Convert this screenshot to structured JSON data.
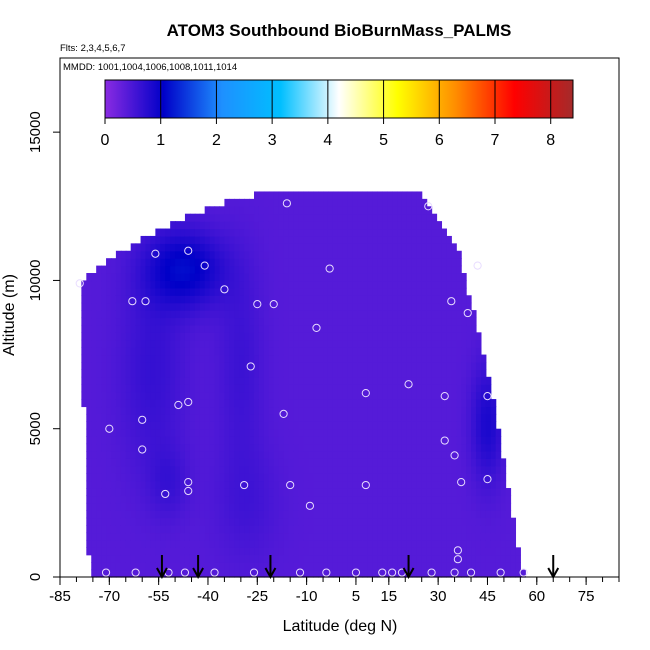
{
  "chart_data": {
    "type": "heatmap",
    "title": "ATOM3 Southbound BioBurnMass_PALMS",
    "flights_label": "Flts: 2,3,4,5,6,7",
    "dates_label": "MMDD: 1001,1004,1006,1008,1011,1014",
    "xlabel": "Latitude (deg N)",
    "ylabel": "Altitude (m)",
    "xlim": [
      -85,
      85
    ],
    "ylim": [
      0,
      17500
    ],
    "x_ticks": [
      -85,
      -70,
      -55,
      -40,
      -25,
      -10,
      5,
      15,
      30,
      45,
      60,
      75
    ],
    "x_tick_labels": [
      "-85",
      "-70",
      "-55",
      "-40",
      "-25",
      "-10",
      "5",
      "15",
      "30",
      "45",
      "60",
      "75"
    ],
    "x_minor_step": 5,
    "y_ticks": [
      0,
      5000,
      10000,
      15000
    ],
    "y_tick_labels": [
      "0",
      "5000",
      "10000",
      "15000"
    ],
    "colorbar": {
      "min": 0,
      "max": 8.4,
      "ticks": [
        0,
        1,
        2,
        3,
        4,
        5,
        6,
        7,
        8
      ],
      "tick_labels": [
        "0",
        "1",
        "2",
        "3",
        "4",
        "5",
        "6",
        "7",
        "8"
      ],
      "colors": [
        "#8a2be2",
        "#0000c8",
        "#1e90ff",
        "#00bfff",
        "#ffffff",
        "#ffff00",
        "#ff8c00",
        "#ff0000",
        "#a52a2a"
      ]
    },
    "region_outline": [
      [
        -76,
        0
      ],
      [
        -79,
        10000
      ],
      [
        -63,
        11200
      ],
      [
        -50,
        12000
      ],
      [
        -30,
        12800
      ],
      [
        -20,
        13000
      ],
      [
        -10,
        13000
      ],
      [
        25,
        13000
      ],
      [
        36,
        11000
      ],
      [
        45,
        7000
      ],
      [
        56,
        0
      ]
    ],
    "field_base_value": 0.4,
    "field_anomalies": [
      {
        "lat": -47,
        "alt": 10400,
        "sx": 12,
        "sy": 1300,
        "v": 0.7
      },
      {
        "lat": -57,
        "alt": 7000,
        "sx": 10,
        "sy": 3500,
        "v": 0.25
      },
      {
        "lat": -30,
        "alt": 7200,
        "sx": 7,
        "sy": 3500,
        "v": 0.2
      },
      {
        "lat": -52,
        "alt": 3200,
        "sx": 6,
        "sy": 1200,
        "v": 0.2
      },
      {
        "lat": 45,
        "alt": 5200,
        "sx": 5,
        "sy": 2000,
        "v": 0.45
      },
      {
        "lat": -28,
        "alt": 2500,
        "sx": 10,
        "sy": 2000,
        "v": 0.15
      }
    ],
    "observations": [
      [
        -79,
        9900
      ],
      [
        -56,
        10900
      ],
      [
        -46,
        11000
      ],
      [
        -41,
        10500
      ],
      [
        -63,
        9300
      ],
      [
        -59,
        9300
      ],
      [
        -35,
        9700
      ],
      [
        -25,
        9200
      ],
      [
        -20,
        9200
      ],
      [
        -16,
        12600
      ],
      [
        -3,
        10400
      ],
      [
        -7,
        8400
      ],
      [
        27,
        12500
      ],
      [
        34,
        9300
      ],
      [
        39,
        8900
      ],
      [
        42,
        10500
      ],
      [
        -27,
        7100
      ],
      [
        -49,
        5800
      ],
      [
        -46,
        5900
      ],
      [
        -60,
        5300
      ],
      [
        -70,
        5000
      ],
      [
        -60,
        4300
      ],
      [
        -17,
        5500
      ],
      [
        8,
        6200
      ],
      [
        21,
        6500
      ],
      [
        32,
        6100
      ],
      [
        32,
        4600
      ],
      [
        35,
        4100
      ],
      [
        45,
        6100
      ],
      [
        -46,
        3200
      ],
      [
        -53,
        2800
      ],
      [
        -46,
        2900
      ],
      [
        -29,
        3100
      ],
      [
        -15,
        3100
      ],
      [
        -9,
        2400
      ],
      [
        8,
        3100
      ],
      [
        37,
        3200
      ],
      [
        45,
        3300
      ],
      [
        36,
        900
      ],
      [
        36,
        600
      ],
      [
        -71,
        150
      ],
      [
        -62,
        150
      ],
      [
        -52,
        150
      ],
      [
        -47,
        150
      ],
      [
        -38,
        150
      ],
      [
        -26,
        150
      ],
      [
        -12,
        150
      ],
      [
        -4,
        150
      ],
      [
        5,
        150
      ],
      [
        13,
        150
      ],
      [
        16,
        150
      ],
      [
        19,
        150
      ],
      [
        28,
        150
      ],
      [
        35,
        150
      ],
      [
        40,
        150
      ],
      [
        49,
        150
      ],
      [
        56,
        150
      ]
    ],
    "sonde_arrows_lat": [
      -54,
      -43,
      -21,
      21,
      65
    ]
  }
}
